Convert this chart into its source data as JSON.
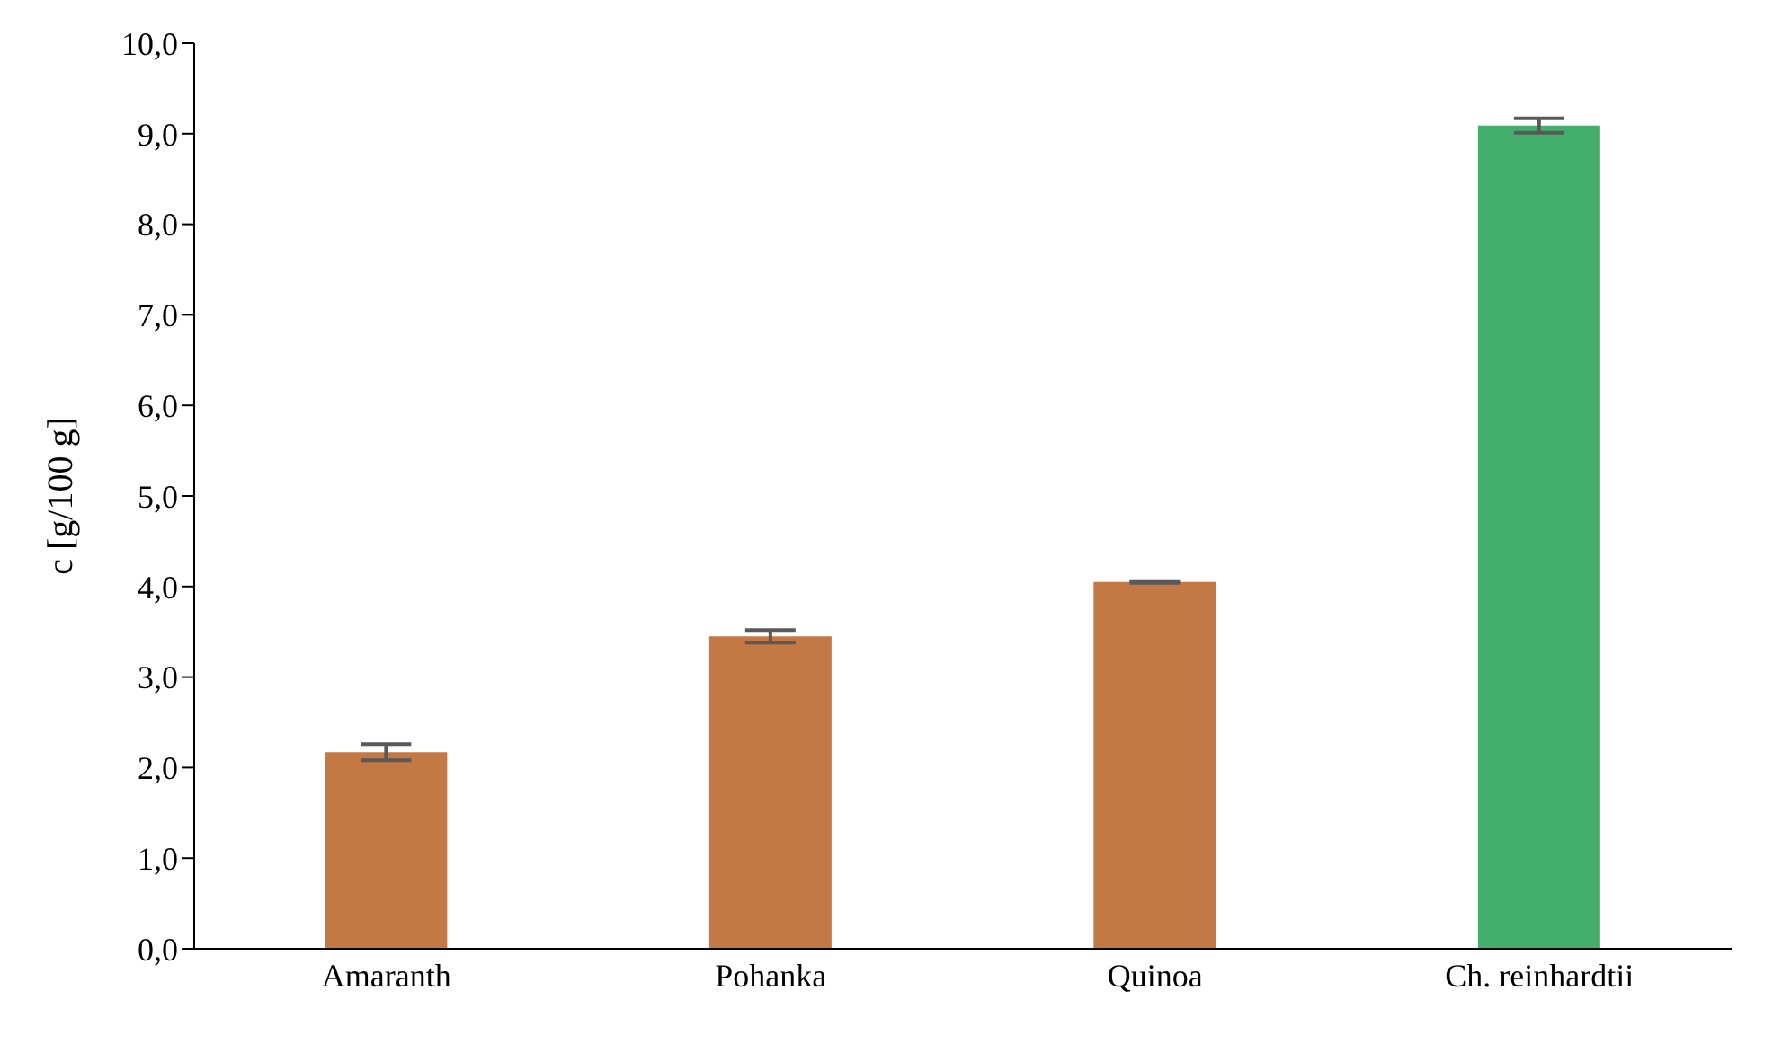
{
  "chart_data": {
    "type": "bar",
    "ylabel": "c [g/100 g]",
    "categories": [
      "Amaranth",
      "Pohanka",
      "Quinoa",
      "Ch. reinhardtii"
    ],
    "values": [
      2.17,
      3.45,
      4.05,
      9.09
    ],
    "colors": [
      "#c47844",
      "#c47844",
      "#c47844",
      "#44af6c"
    ],
    "errors": [
      0.09,
      0.07,
      0.01,
      0.08
    ],
    "ylim": [
      0,
      10
    ],
    "yticks": [
      {
        "value": 0,
        "label": "0,0"
      },
      {
        "value": 1,
        "label": "1,0"
      },
      {
        "value": 2,
        "label": "2,0"
      },
      {
        "value": 3,
        "label": "3,0"
      },
      {
        "value": 4,
        "label": "4,0"
      },
      {
        "value": 5,
        "label": "5,0"
      },
      {
        "value": 6,
        "label": "6,0"
      },
      {
        "value": 7,
        "label": "7,0"
      },
      {
        "value": 8,
        "label": "8,0"
      },
      {
        "value": 9,
        "label": "9,0"
      },
      {
        "value": 10,
        "label": "10,0"
      }
    ],
    "grid": false,
    "legend": false
  }
}
